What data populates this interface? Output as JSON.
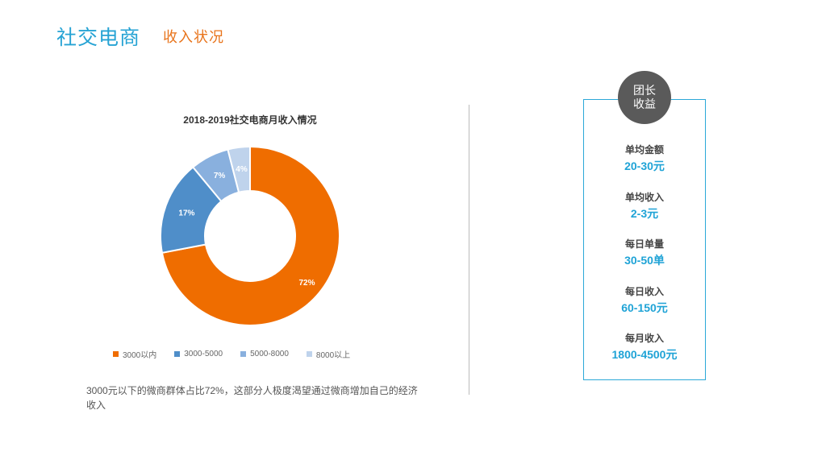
{
  "header": {
    "title": "社交电商",
    "subtitle": "收入状况"
  },
  "chart_data": {
    "type": "pie",
    "variant": "donut",
    "title": "2018-2019社交电商月收入情况",
    "legend_position": "bottom",
    "categories": [
      "3000以内",
      "3000-5000",
      "5000-8000",
      "8000以上"
    ],
    "values": [
      72,
      17,
      7,
      4
    ],
    "value_labels": [
      "72%",
      "17%",
      "7%",
      "4%"
    ],
    "legend_labels": [
      "3000以内",
      "3000-5000",
      "5000-8000",
      "8000以上"
    ],
    "colors": [
      "#ef6d00",
      "#4f8ec9",
      "#89b0de",
      "#bfd3ec"
    ]
  },
  "note": "3000元以下的微商群体占比72%，这部分人极度渴望通过微商增加自己的经济收入",
  "panel": {
    "badge_text": "团长收益",
    "metrics": [
      {
        "label": "单均金额",
        "value": "20-30元"
      },
      {
        "label": "单均收入",
        "value": "2-3元"
      },
      {
        "label": "每日单量",
        "value": "30-50单"
      },
      {
        "label": "每日收入",
        "value": "60-150元"
      },
      {
        "label": "每月收入",
        "value": "1800-4500元"
      }
    ]
  }
}
